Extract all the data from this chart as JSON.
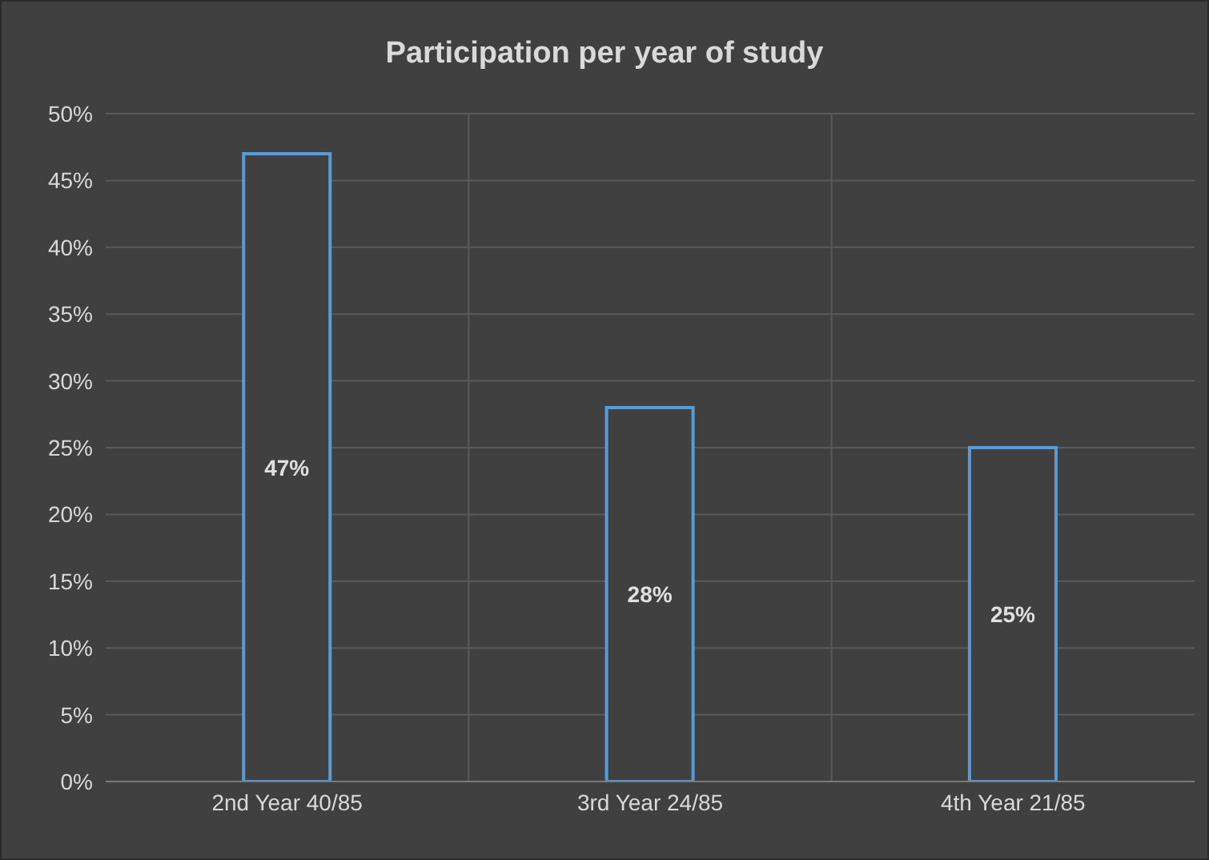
{
  "chart_data": {
    "type": "bar",
    "title": "Participation per year of study",
    "categories": [
      "2nd Year      40/85",
      "3rd Year      24/85",
      "4th Year      21/85"
    ],
    "values": [
      47,
      28,
      25
    ],
    "color": "#5b9bd5",
    "value_labels": [
      "47%",
      "28%",
      "25%"
    ],
    "ylim": [
      0,
      50
    ],
    "yticks": [
      {
        "value": 0,
        "label": "0%"
      },
      {
        "value": 5,
        "label": "5%"
      },
      {
        "value": 10,
        "label": "10%"
      },
      {
        "value": 15,
        "label": "15%"
      },
      {
        "value": 20,
        "label": "20%"
      },
      {
        "value": 25,
        "label": "25%"
      },
      {
        "value": 30,
        "label": "30%"
      },
      {
        "value": 35,
        "label": "35%"
      },
      {
        "value": 40,
        "label": "40%"
      },
      {
        "value": 45,
        "label": "45%"
      },
      {
        "value": 50,
        "label": "50%"
      }
    ],
    "grid": true
  }
}
